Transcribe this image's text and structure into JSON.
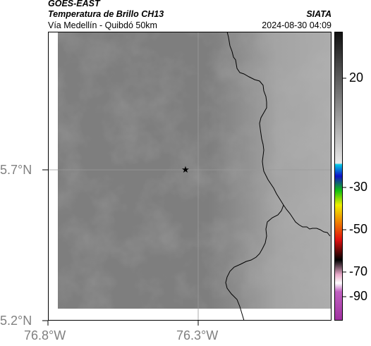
{
  "header": {
    "satellite": "GOES-EAST",
    "product": "Temperatura de Brillo CH13",
    "route": "Vía Medellín - Quibdó 50km",
    "org": "SIATA",
    "datetime": "2024-08-30 04:09"
  },
  "axes": {
    "lat_ticks": [
      "5.7°N",
      "5.2°N"
    ],
    "lon_ticks": [
      "76.8°W",
      "76.3°W"
    ]
  },
  "colorbar": {
    "labels": [
      "20",
      "-30",
      "-50",
      "-70",
      "-90"
    ],
    "colors": {
      "gray_dark": "#101010",
      "gray_light": "#dcdcdc",
      "cyan": "#00c8e6",
      "blue": "#1010c8",
      "green": "#10c010",
      "yellow": "#f0f000",
      "red": "#e01010",
      "black": "#000000",
      "pink": "#e8a8c8",
      "purple": "#a030a0"
    }
  },
  "map": {
    "marker_icon": "star-icon",
    "land_color": "#808080",
    "border_color": "#000000"
  }
}
